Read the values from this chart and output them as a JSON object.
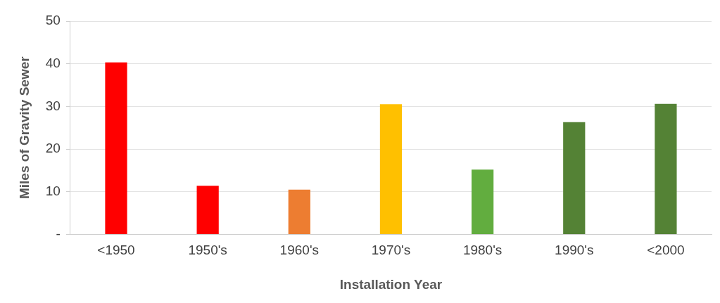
{
  "chart_data": {
    "type": "bar",
    "xlabel": "Installation Year",
    "ylabel": "Miles of Gravity Sewer",
    "categories": [
      "<1950",
      "1950's",
      "1960's",
      "1970's",
      "1980's",
      "1990's",
      "<2000"
    ],
    "values": [
      40.3,
      11.4,
      10.5,
      30.5,
      15.2,
      26.3,
      30.6
    ],
    "colors": [
      "#ff0000",
      "#ff0000",
      "#ed7d31",
      "#ffc000",
      "#62ad3f",
      "#548235",
      "#548235"
    ],
    "ylim": [
      0,
      50
    ],
    "yticks": [
      {
        "value": 0,
        "label": "-"
      },
      10,
      20,
      30,
      40,
      50
    ],
    "grid": "y",
    "legend": false
  }
}
